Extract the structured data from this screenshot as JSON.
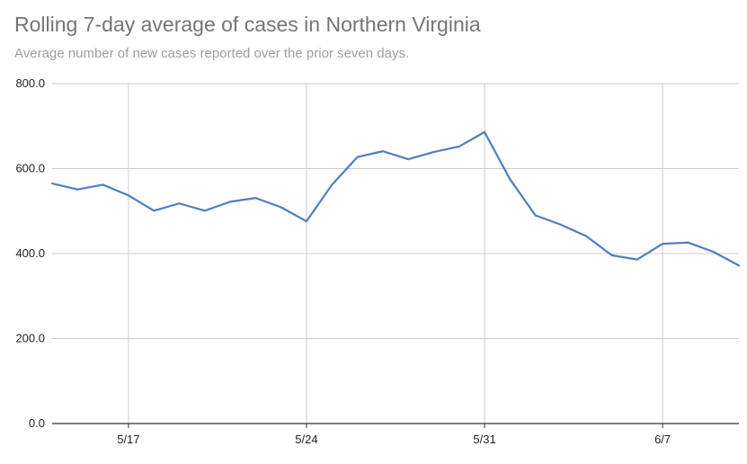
{
  "chart_data": {
    "type": "line",
    "title": "Rolling 7-day average of cases in Northern Virginia",
    "subtitle": "Average number of new cases reported over the prior seven days.",
    "xlabel": "",
    "ylabel": "",
    "ylim": [
      0,
      800
    ],
    "y_ticks": [
      0,
      200,
      400,
      600,
      800
    ],
    "y_tick_labels": [
      "0.0",
      "200.0",
      "400.0",
      "600.0",
      "800.0"
    ],
    "x_ticks": [
      "5/17",
      "5/24",
      "5/31",
      "6/7"
    ],
    "grid": true,
    "legend": "none",
    "line_color": "#4e7fc0",
    "series": [
      {
        "x": [
          "5/14",
          "5/15",
          "5/16",
          "5/17",
          "5/18",
          "5/19",
          "5/20",
          "5/21",
          "5/22",
          "5/23",
          "5/24",
          "5/25",
          "5/26",
          "5/27",
          "5/28",
          "5/29",
          "5/30",
          "5/31",
          "6/1",
          "6/2",
          "6/3",
          "6/4",
          "6/5",
          "6/6",
          "6/7",
          "6/8",
          "6/9",
          "6/10"
        ],
        "values": [
          565,
          551,
          562,
          537,
          501,
          518,
          501,
          522,
          531,
          509,
          476,
          562,
          627,
          641,
          622,
          639,
          652,
          686,
          575,
          490,
          468,
          441,
          396,
          386,
          423,
          426,
          404,
          372
        ]
      }
    ]
  }
}
